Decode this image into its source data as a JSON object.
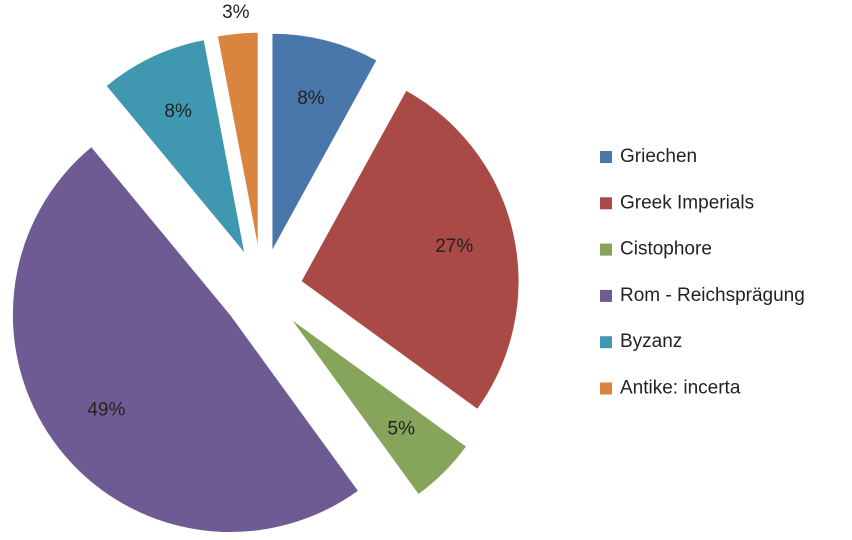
{
  "chart_data": {
    "type": "pie",
    "categories": [
      "Griechen",
      "Greek Imperials",
      "Cistophore",
      "Rom - Reichsprägung",
      "Byzanz",
      "Antike: incerta"
    ],
    "values": [
      8,
      27,
      5,
      49,
      8,
      3
    ],
    "value_labels": [
      "8%",
      "27%",
      "5%",
      "49%",
      "8%",
      "3%"
    ],
    "colors": [
      "#4a77aa",
      "#a94a47",
      "#86a45a",
      "#6f5b94",
      "#3f98b0",
      "#d98540"
    ],
    "legend": "right"
  }
}
